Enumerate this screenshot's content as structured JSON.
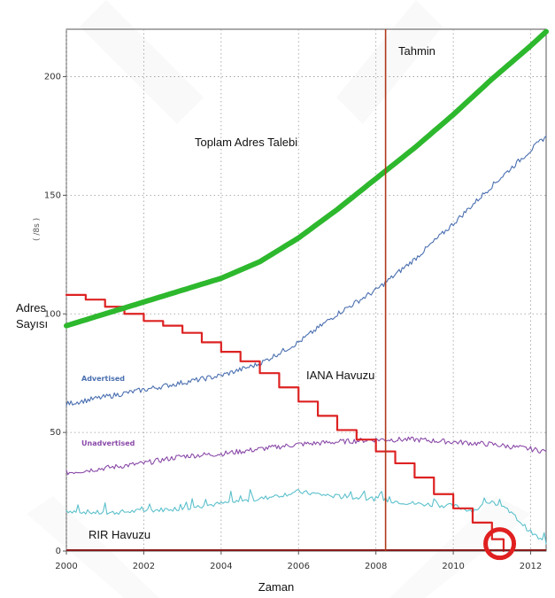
{
  "chart_data": {
    "type": "line",
    "title": "",
    "xlabel": "Zaman",
    "ylabel_line1": "Adres",
    "ylabel_line2": "Sayısı",
    "units_label": "( /8s )",
    "xlim": [
      2000,
      2012.4
    ],
    "ylim": [
      0,
      220
    ],
    "x_ticks": [
      2000,
      2002,
      2004,
      2006,
      2008,
      2010,
      2012
    ],
    "x_tick_labels": [
      "2000",
      "2002",
      "2004",
      "2006",
      "2008",
      "2010",
      "2012"
    ],
    "y_ticks": [
      0,
      50,
      100,
      150,
      200
    ],
    "y_tick_labels": [
      "0",
      "50",
      "100",
      "150",
      "200"
    ],
    "grid": "dotted",
    "forecast_x": 2008.25,
    "series": [
      {
        "name": "Toplam Adres Talebi",
        "color": "#2db82d",
        "x": [
          2000,
          2001,
          2002,
          2003,
          2004,
          2005,
          2006,
          2007,
          2008,
          2009,
          2010,
          2011,
          2012,
          2012.4
        ],
        "values": [
          95,
          100,
          105,
          110,
          115,
          122,
          132,
          144,
          157,
          170,
          184,
          199,
          213,
          219
        ]
      },
      {
        "name": "Advertised",
        "color": "#4a6fb0",
        "x": [
          2000,
          2001,
          2002,
          2003,
          2004,
          2005,
          2006,
          2007,
          2008,
          2009,
          2010,
          2011,
          2012,
          2012.4
        ],
        "values": [
          62,
          65,
          68,
          71,
          74,
          79,
          88,
          100,
          110,
          123,
          138,
          154,
          169,
          175
        ]
      },
      {
        "name": "IANA Havuzu",
        "color": "#dd2222",
        "x": [
          2000,
          2000.5,
          2001,
          2001.5,
          2002,
          2002.5,
          2003,
          2003.5,
          2004,
          2004.5,
          2005,
          2005.5,
          2006,
          2006.5,
          2007,
          2007.5,
          2008,
          2008.5,
          2009,
          2009.5,
          2010,
          2010.5,
          2011,
          2011.3
        ],
        "values": [
          108,
          106,
          103,
          100,
          97,
          95,
          92,
          88,
          84,
          80,
          75,
          69,
          63,
          57,
          51,
          47,
          42,
          37,
          31,
          24,
          18,
          12,
          5,
          0
        ]
      },
      {
        "name": "Unadvertised",
        "color": "#8a4aa8",
        "x": [
          2000,
          2001,
          2002,
          2003,
          2004,
          2005,
          2006,
          2007,
          2008,
          2009,
          2010,
          2011,
          2012,
          2012.4
        ],
        "values": [
          33,
          35,
          37,
          40,
          41,
          43,
          45,
          46,
          47,
          47,
          46,
          45,
          43,
          42
        ]
      },
      {
        "name": "RIR Havuzu",
        "color": "#5cc0cc",
        "x": [
          2000,
          2001,
          2002,
          2003,
          2004,
          2005,
          2006,
          2007,
          2008,
          2009,
          2010,
          2010.5,
          2011,
          2011.5,
          2012,
          2012.4
        ],
        "values": [
          17,
          16,
          17,
          18,
          20,
          22,
          25,
          23,
          22,
          20,
          19,
          17,
          21,
          16,
          8,
          3
        ]
      }
    ],
    "annotations": {
      "forecast": "Tahmin",
      "total_demand": "Toplam Adres Talebi",
      "iana_pool": "IANA Havuzu",
      "rir_pool": "RIR Havuzu",
      "advertised": "Advertised",
      "unadvertised": "Unadvertised"
    },
    "highlight_circle_x": 2011.2,
    "highlight_circle_y": 2
  }
}
